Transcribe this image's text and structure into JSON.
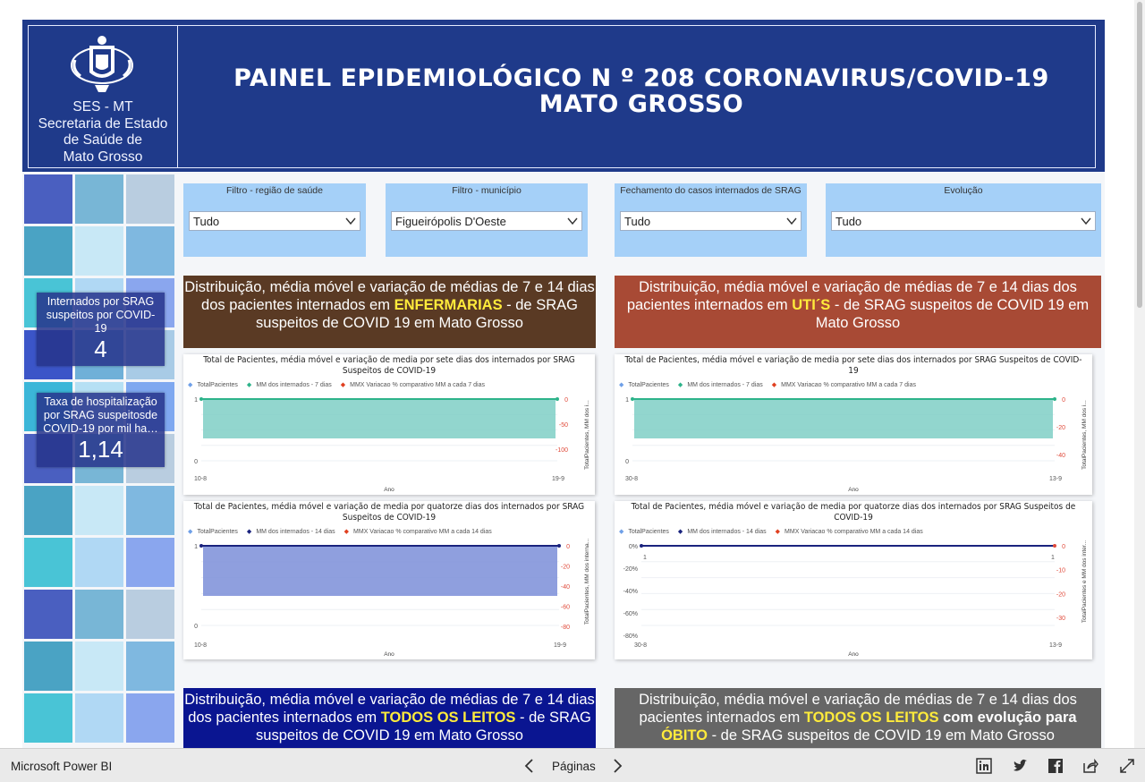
{
  "header": {
    "title": "PAINEL EPIDEMIOLÓGICO N º 208 CORONAVIRUS/COVID-19 MATO GROSSO",
    "logo_lines": [
      "SES - MT",
      "Secretaria de Estado",
      "de Saúde de",
      "Mato Grosso"
    ]
  },
  "kpis": [
    {
      "label": "Internados por SRAG suspeitos por COVID-19",
      "value": "4"
    },
    {
      "label": "Taxa de hospitalização por SRAG suspeitosde COVID-19 por mil ha…",
      "value": "1,14"
    }
  ],
  "filters": [
    {
      "title": "Filtro - região de saúde",
      "value": "Tudo"
    },
    {
      "title": "Filtro - município",
      "value": "Figueirópolis D'Oeste"
    },
    {
      "title": "Fechamento do casos internados de SRAG",
      "value": "Tudo"
    },
    {
      "title": "Evolução",
      "value": "Tudo"
    }
  ],
  "sections": {
    "enfermarias": {
      "pre": "Distribuição, média móvel e variação de médias de 7 e  14 dias dos pacientes internados em ",
      "hl": "ENFERMARIAS",
      "post": "  - de SRAG suspeitos de COVID 19 em Mato Grosso",
      "color": "#5a3a24"
    },
    "utis": {
      "pre": "Distribuição, média móvel e variação de médias de 7 e  14 dias dos pacientes internados em ",
      "hl": "UTI´S",
      "post": "  - de SRAG suspeitos de COVID 19 em Mato Grosso",
      "color": "#a84a35"
    },
    "todos": {
      "pre": "Distribuição, média móvel e variação de médias de 7 e  14 dias dos pacientes  internados em ",
      "hl": "TODOS OS LEITOS",
      "post": "  - de SRAG suspeitos de COVID 19 em Mato Grosso",
      "color": "#0a1591"
    },
    "obito": {
      "pre": "Distribuição, média móvel e variação de médias de 7 e  14 dias dos pacientes internados em ",
      "hl": "TODOS OS LEITOS",
      "mid": " com evolução para ",
      "hl2": "ÓBITO",
      "post": "  - de SRAG suspeitos de COVID 19 em Mato Grosso",
      "color": "#666666"
    }
  },
  "charts": {
    "c1": {
      "title": "Total de Pacientes, média móvel e variação de media por sete dias dos internados por SRAG Suspeitos de COVID-19",
      "legend": [
        "TotalPacientes",
        "MM dos internados - 7 dias",
        "MMX Variacao % comparativo MM a cada 7 dias"
      ],
      "xlabel": "Ano",
      "x_ticks": [
        "10-8",
        "19-9"
      ],
      "y_left": [
        "1",
        "0"
      ],
      "y_right": [
        "0",
        "-50",
        "-100"
      ],
      "y_right_label": "TotalPacientes, MM dos i..."
    },
    "c2": {
      "title": "Total de Pacientes, média móvel e variação de media por sete dias dos internados por SRAG Suspeitos de COVID-19",
      "legend": [
        "TotalPacientes",
        "MM dos internados - 7 dias",
        "MMX Variacao % comparativo MM a cada 7 dias"
      ],
      "xlabel": "Ano",
      "x_ticks": [
        "30-8",
        "13-9"
      ],
      "y_left": [
        "1",
        "0"
      ],
      "y_right": [
        "0",
        "-20",
        "-40"
      ],
      "y_right_label": "TotalPacientes, MM dos i..."
    },
    "c3": {
      "title": "Total de Pacientes, média móvel e variação de media por quatorze dias dos internados por SRAG Suspeitos de COVID-19",
      "legend": [
        "TotalPacientes",
        "MM dos internados - 14 dias",
        "MMX Variacao % comparativo MM a cada 14 dias"
      ],
      "xlabel": "Ano",
      "x_ticks": [
        "10-8",
        "19-9"
      ],
      "y_left": [
        "1",
        "0"
      ],
      "y_right": [
        "0",
        "-20",
        "-40",
        "-60",
        "-80"
      ],
      "y_right_label": "TotalPacientes, MM dos interna..."
    },
    "c4": {
      "title": "Total de Pacientes, média móvel e variação de media por quatorze dias dos internados por SRAG Suspeitos de COVID-19",
      "legend": [
        "TotalPacientes",
        "MM dos internados - 14 dias",
        "MMX Variacao % comparativo MM a cada 14 dias"
      ],
      "xlabel": "Ano",
      "x_ticks": [
        "30-8",
        "13-9"
      ],
      "y_left": [
        "0%",
        "-20%",
        "-40%",
        "-60%",
        "-80%"
      ],
      "y_right": [
        "0",
        "-10",
        "-20",
        "-30"
      ],
      "y_right_label": "TotalPacientes e MM dos inter...",
      "point_labels": [
        "1",
        "1"
      ]
    }
  },
  "statusbar": {
    "brand": "Microsoft Power BI",
    "pages": "Páginas"
  },
  "colors": {
    "header_bg": "#1f3a8a",
    "filter_bg": "#a5d0f8",
    "area_teal": "#7fcfc5",
    "area_blue": "#7b8ed8",
    "line_green": "#2db38a",
    "line_navy": "#1a237e"
  }
}
